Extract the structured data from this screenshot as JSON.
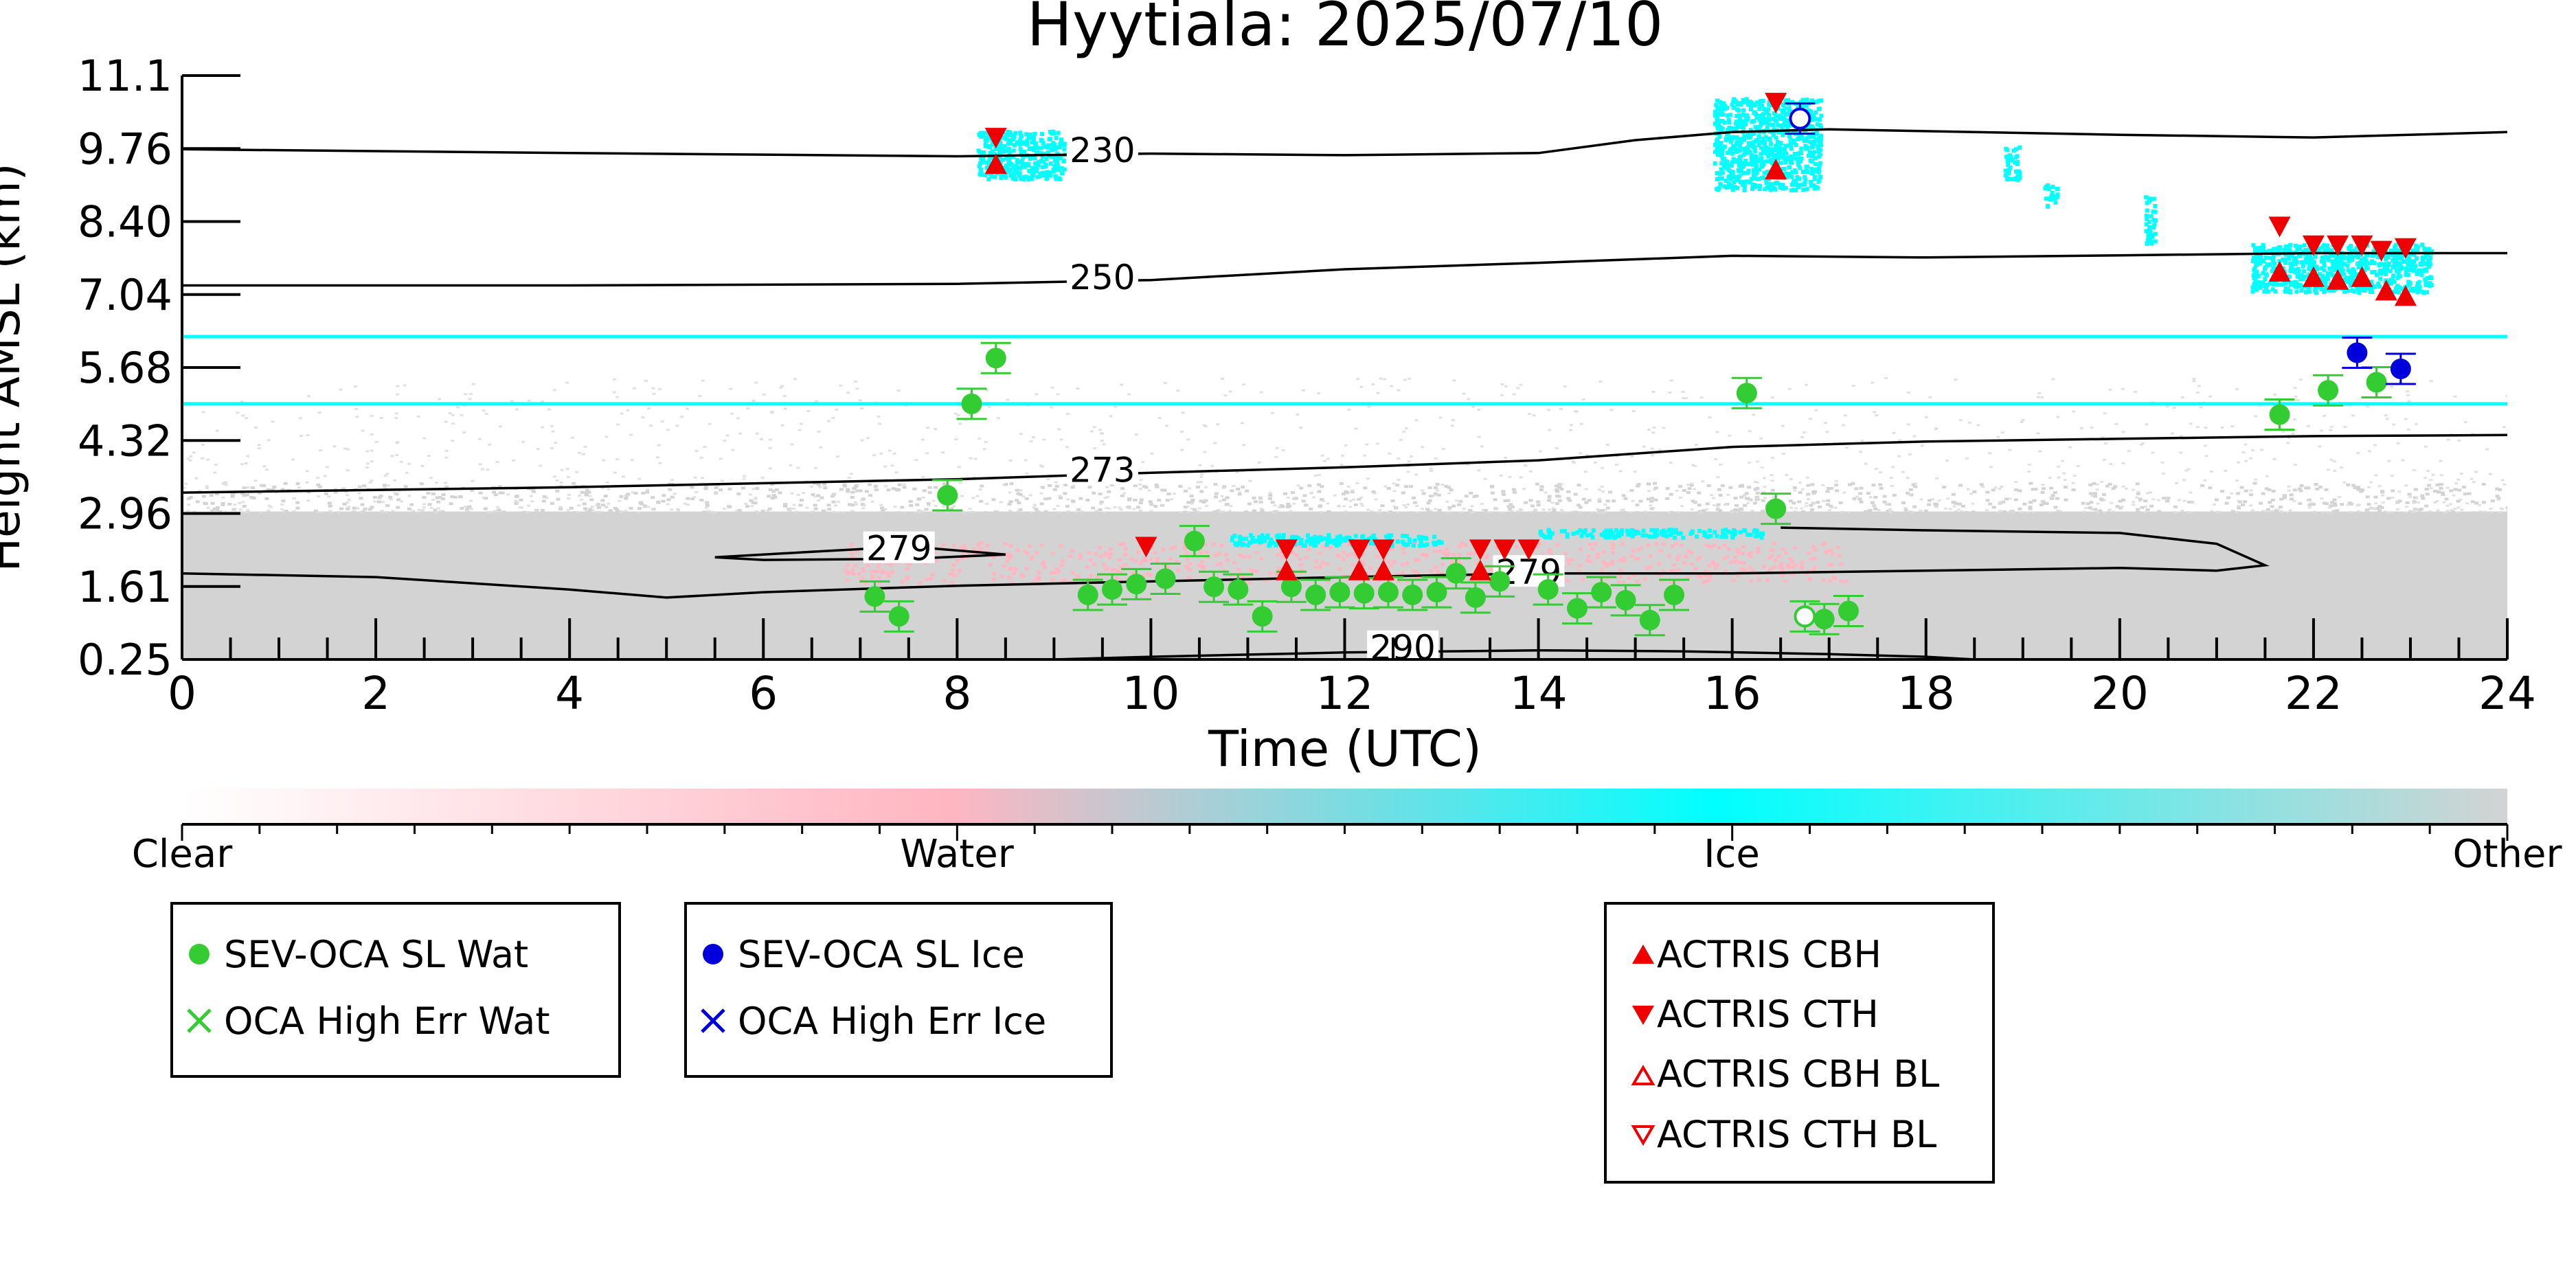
{
  "chart_data": {
    "type": "scatter",
    "title": "Hyytiala: 2025/07/10",
    "xlabel": "Time (UTC)",
    "ylabel": "Height AMSL (km)",
    "xlim": [
      0,
      24
    ],
    "ylim": [
      0.25,
      11.1
    ],
    "x_ticks": [
      "0",
      "2",
      "4",
      "6",
      "8",
      "10",
      "12",
      "14",
      "16",
      "18",
      "20",
      "22",
      "24"
    ],
    "y_ticks": [
      "0.25",
      "1.61",
      "2.96",
      "4.32",
      "5.68",
      "7.04",
      "8.40",
      "9.76",
      "11.1"
    ],
    "colorbar": {
      "labels": [
        "Clear",
        "Water",
        "Ice",
        "Other"
      ],
      "colors": [
        "#ffffff",
        "#ffb6c1",
        "#00ffff",
        "#d3d3d3"
      ]
    },
    "legends": [
      {
        "entries": [
          {
            "label": "SEV-OCA SL Wat",
            "marker": "filled-circle",
            "color": "#33cc33"
          },
          {
            "label": "OCA High Err Wat",
            "marker": "x",
            "color": "#33cc33"
          }
        ]
      },
      {
        "entries": [
          {
            "label": "SEV-OCA SL Ice",
            "marker": "filled-circle",
            "color": "#0000dd"
          },
          {
            "label": "OCA High Err Ice",
            "marker": "x",
            "color": "#0000dd"
          }
        ]
      },
      {
        "entries": [
          {
            "label": "ACTRIS CBH",
            "marker": "triangle-up",
            "color": "#ee0000"
          },
          {
            "label": "ACTRIS CTH",
            "marker": "triangle-down",
            "color": "#ee0000"
          },
          {
            "label": "ACTRIS CBH BL",
            "marker": "triangle-up-open",
            "color": "#ee0000"
          },
          {
            "label": "ACTRIS CTH BL",
            "marker": "triangle-down-open",
            "color": "#ee0000"
          }
        ]
      }
    ],
    "contours": [
      {
        "label": "230",
        "points": [
          [
            0,
            9.73
          ],
          [
            4,
            9.66
          ],
          [
            8,
            9.6
          ],
          [
            10,
            9.65
          ],
          [
            12,
            9.62
          ],
          [
            14,
            9.66
          ],
          [
            15,
            9.9
          ],
          [
            16,
            10.05
          ],
          [
            17,
            10.1
          ],
          [
            20,
            10.0
          ],
          [
            22,
            9.95
          ],
          [
            24,
            10.05
          ]
        ]
      },
      {
        "label": "250",
        "points": [
          [
            0,
            7.2
          ],
          [
            4,
            7.2
          ],
          [
            8,
            7.23
          ],
          [
            10,
            7.3
          ],
          [
            12,
            7.5
          ],
          [
            14,
            7.62
          ],
          [
            16,
            7.75
          ],
          [
            18,
            7.72
          ],
          [
            20,
            7.76
          ],
          [
            22,
            7.8
          ],
          [
            24,
            7.8
          ]
        ]
      },
      {
        "label": "273",
        "points": [
          [
            0,
            3.35
          ],
          [
            4,
            3.45
          ],
          [
            8,
            3.6
          ],
          [
            10,
            3.72
          ],
          [
            12,
            3.82
          ],
          [
            14,
            3.95
          ],
          [
            16,
            4.2
          ],
          [
            18,
            4.3
          ],
          [
            20,
            4.35
          ],
          [
            22,
            4.4
          ],
          [
            24,
            4.42
          ]
        ]
      },
      {
        "label": "279",
        "points": [
          [
            0,
            1.85
          ],
          [
            2,
            1.78
          ],
          [
            4,
            1.55
          ],
          [
            5,
            1.4
          ],
          [
            6,
            1.5
          ],
          [
            8,
            1.62
          ],
          [
            10,
            1.7
          ],
          [
            12,
            1.78
          ],
          [
            14,
            1.85
          ],
          [
            16,
            1.85
          ],
          [
            18,
            1.9
          ],
          [
            20,
            1.95
          ],
          [
            21,
            1.9
          ],
          [
            21.5,
            2.0
          ],
          [
            21,
            2.4
          ],
          [
            20,
            2.6
          ],
          [
            18,
            2.65
          ],
          [
            16.5,
            2.7
          ]
        ]
      },
      {
        "label": "279",
        "points": [
          [
            5.5,
            2.15
          ],
          [
            6.5,
            2.25
          ],
          [
            7.5,
            2.35
          ],
          [
            8.5,
            2.2
          ],
          [
            7.5,
            2.12
          ],
          [
            6,
            2.1
          ],
          [
            5.5,
            2.15
          ]
        ]
      },
      {
        "label": "290",
        "points": [
          [
            9,
            0.25
          ],
          [
            10,
            0.3
          ],
          [
            12,
            0.38
          ],
          [
            14,
            0.42
          ],
          [
            15.5,
            0.4
          ],
          [
            17,
            0.35
          ],
          [
            18,
            0.3
          ],
          [
            18.5,
            0.25
          ]
        ]
      }
    ],
    "contour_label_positions": [
      {
        "label": "230",
        "x": 9.5,
        "y": 9.62
      },
      {
        "label": "250",
        "x": 9.5,
        "y": 7.26
      },
      {
        "label": "273",
        "x": 9.5,
        "y": 3.68
      },
      {
        "label": "279",
        "x": 7.4,
        "y": 2.22
      },
      {
        "label": "279",
        "x": 13.9,
        "y": 1.78
      },
      {
        "label": "290",
        "x": 12.6,
        "y": 0.38
      }
    ],
    "series": [
      {
        "name": "SEV-OCA SL Wat",
        "marker": "filled-circle",
        "color": "#33cc33",
        "points": [
          [
            7.15,
            1.42
          ],
          [
            7.4,
            1.05
          ],
          [
            7.9,
            3.3
          ],
          [
            8.15,
            5.0
          ],
          [
            8.4,
            5.85
          ],
          [
            9.35,
            1.45
          ],
          [
            9.6,
            1.55
          ],
          [
            9.85,
            1.65
          ],
          [
            10.15,
            1.75
          ],
          [
            10.45,
            2.45
          ],
          [
            10.65,
            1.6
          ],
          [
            10.9,
            1.55
          ],
          [
            11.15,
            1.05
          ],
          [
            11.45,
            1.6
          ],
          [
            11.7,
            1.45
          ],
          [
            11.95,
            1.5
          ],
          [
            12.2,
            1.48
          ],
          [
            12.45,
            1.5
          ],
          [
            12.7,
            1.45
          ],
          [
            12.95,
            1.5
          ],
          [
            13.15,
            1.85
          ],
          [
            13.35,
            1.4
          ],
          [
            13.6,
            1.7
          ],
          [
            14.1,
            1.55
          ],
          [
            14.4,
            1.2
          ],
          [
            14.65,
            1.5
          ],
          [
            14.9,
            1.35
          ],
          [
            15.15,
            0.98
          ],
          [
            15.4,
            1.45
          ],
          [
            16.15,
            5.2
          ],
          [
            16.45,
            3.05
          ],
          [
            16.95,
            1.0
          ],
          [
            17.2,
            1.15
          ],
          [
            21.65,
            4.8
          ],
          [
            22.15,
            5.25
          ],
          [
            22.65,
            5.4
          ]
        ]
      },
      {
        "name": "SEV-OCA SL Ice",
        "marker": "filled-circle",
        "color": "#0000dd",
        "points": [
          [
            22.45,
            5.95
          ],
          [
            22.9,
            5.65
          ]
        ]
      },
      {
        "name": "OCA High Err Wat (open)",
        "marker": "open-circle",
        "color": "#33cc33",
        "points": [
          [
            16.75,
            1.05
          ]
        ]
      },
      {
        "name": "OCA High Err Ice (open)",
        "marker": "open-circle",
        "color": "#0000dd",
        "points": [
          [
            16.7,
            10.3
          ]
        ]
      },
      {
        "name": "ACTRIS CBH",
        "marker": "triangle-up",
        "color": "#ee0000",
        "points": [
          [
            8.4,
            9.45
          ],
          [
            16.45,
            9.35
          ],
          [
            11.4,
            1.9
          ],
          [
            12.15,
            1.9
          ],
          [
            12.4,
            1.9
          ],
          [
            13.4,
            1.9
          ],
          [
            21.65,
            7.45
          ],
          [
            22.0,
            7.35
          ],
          [
            22.25,
            7.3
          ],
          [
            22.5,
            7.35
          ],
          [
            22.75,
            7.1
          ],
          [
            22.95,
            7.0
          ]
        ]
      },
      {
        "name": "ACTRIS CTH",
        "marker": "triangle-down",
        "color": "#ee0000",
        "points": [
          [
            8.4,
            9.95
          ],
          [
            16.45,
            10.6
          ],
          [
            9.95,
            2.35
          ],
          [
            11.4,
            2.3
          ],
          [
            12.15,
            2.3
          ],
          [
            12.4,
            2.3
          ],
          [
            13.4,
            2.3
          ],
          [
            13.65,
            2.3
          ],
          [
            13.9,
            2.3
          ],
          [
            21.65,
            8.3
          ],
          [
            22.0,
            7.95
          ],
          [
            22.25,
            7.95
          ],
          [
            22.5,
            7.95
          ],
          [
            22.7,
            7.85
          ],
          [
            22.95,
            7.9
          ]
        ]
      }
    ],
    "cloud_regions": [
      {
        "class": "Other",
        "color": "#d3d3d3",
        "x": [
          0,
          24
        ],
        "y": [
          0.25,
          3.0
        ],
        "kind": "background-speckle-bottom"
      },
      {
        "class": "Other",
        "color": "#dcdcdc",
        "x": [
          0,
          24
        ],
        "y": [
          3.0,
          5.5
        ],
        "kind": "speckle-sparse"
      },
      {
        "class": "Ice",
        "color": "#00ffff",
        "kind": "horizontal-line",
        "x": [
          0,
          24
        ],
        "y": [
          6.25,
          6.25
        ]
      },
      {
        "class": "Ice",
        "color": "#00ffff",
        "kind": "horizontal-line",
        "x": [
          0,
          24
        ],
        "y": [
          5.0,
          5.0
        ]
      },
      {
        "class": "Water",
        "color": "#ffb6c1",
        "kind": "band",
        "x": [
          6.8,
          17.2
        ],
        "y": [
          1.7,
          2.45
        ]
      },
      {
        "class": "Ice",
        "color": "#00ffff",
        "kind": "patch",
        "x": [
          8.2,
          9.1
        ],
        "y": [
          9.2,
          10.1
        ]
      },
      {
        "class": "Ice",
        "color": "#00ffff",
        "kind": "patch",
        "x": [
          15.8,
          16.9
        ],
        "y": [
          9.0,
          10.7
        ]
      },
      {
        "class": "Ice",
        "color": "#00ffff",
        "kind": "patch",
        "x": [
          18.8,
          18.95
        ],
        "y": [
          9.2,
          9.8
        ]
      },
      {
        "class": "Ice",
        "color": "#00ffff",
        "kind": "patch",
        "x": [
          19.2,
          19.35
        ],
        "y": [
          8.7,
          9.1
        ]
      },
      {
        "class": "Ice",
        "color": "#00ffff",
        "kind": "patch",
        "x": [
          20.25,
          20.35
        ],
        "y": [
          8.0,
          8.9
        ]
      },
      {
        "class": "Ice",
        "color": "#00ffff",
        "kind": "patch",
        "x": [
          21.35,
          23.2
        ],
        "y": [
          7.1,
          8.0
        ]
      },
      {
        "class": "Ice",
        "color": "#00ffff",
        "kind": "patch",
        "x": [
          10.8,
          13.0
        ],
        "y": [
          2.4,
          2.6
        ]
      },
      {
        "class": "Ice",
        "color": "#00ffff",
        "kind": "patch",
        "x": [
          14.0,
          16.3
        ],
        "y": [
          2.55,
          2.7
        ]
      }
    ]
  }
}
